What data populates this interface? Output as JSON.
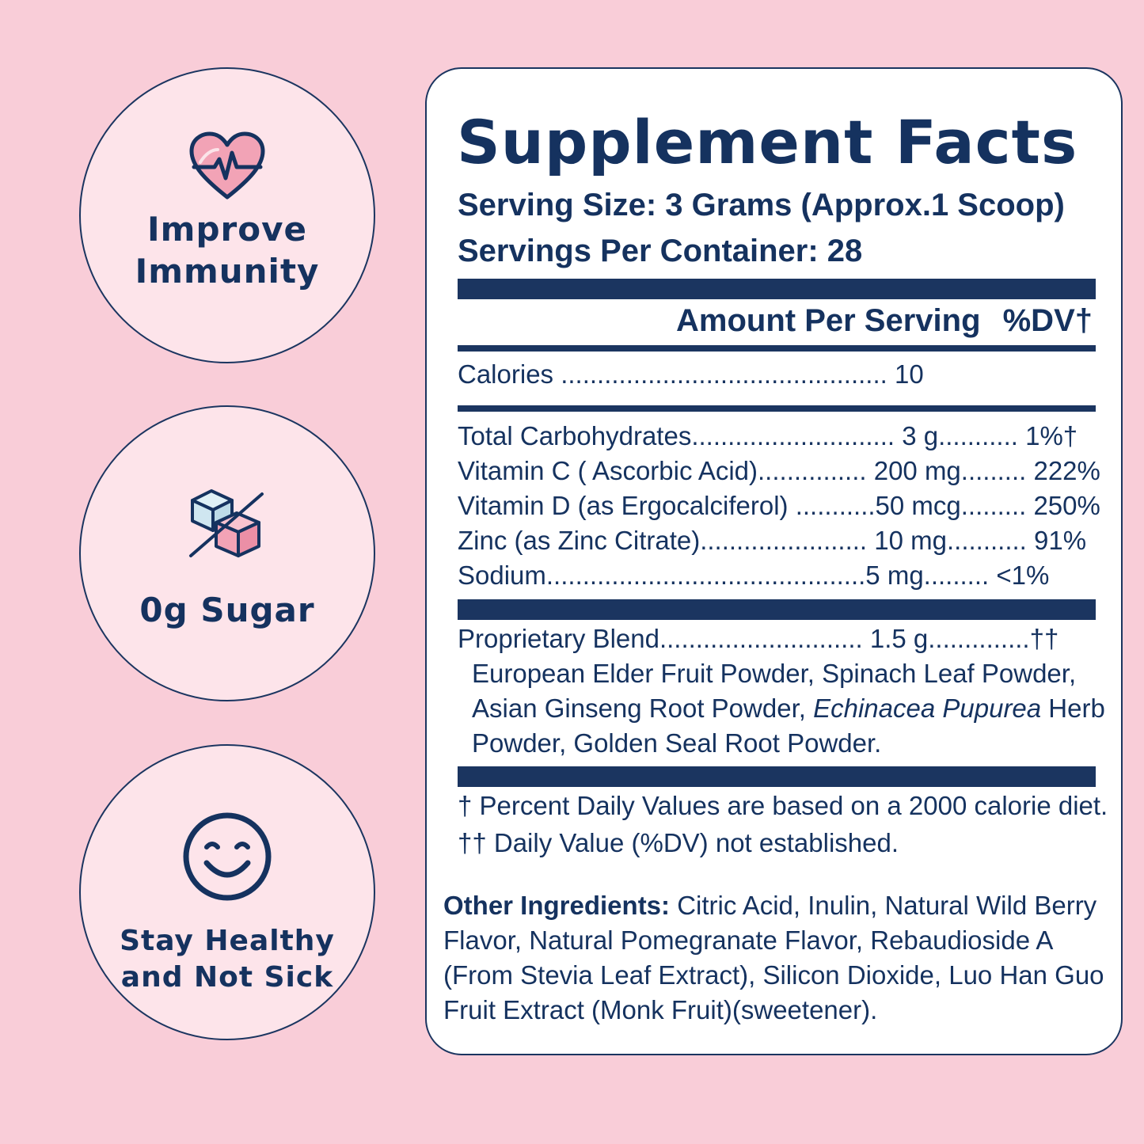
{
  "badges": [
    {
      "label_line1": "Improve",
      "label_line2": "Immunity",
      "icon": "heart-pulse-icon"
    },
    {
      "label_line1": "0g Sugar",
      "label_line2": "",
      "icon": "sugar-cube-crossed-icon"
    },
    {
      "label_line1": "Stay Healthy",
      "label_line2": "and Not Sick",
      "icon": "smiley-face-icon"
    }
  ],
  "facts": {
    "title": "Supplement Facts",
    "serving_size": "Serving Size: 3 Grams (Approx.1 Scoop)",
    "servings_per_container": "Servings Per Container: 28",
    "amount_header": "Amount Per Serving",
    "dv_header": "%DV†",
    "calories_line": "Calories ............................................. 10",
    "nutrients": [
      "Total Carbohydrates............................ 3 g........... 1%†",
      "Vitamin C ( Ascorbic Acid)............... 200 mg......... 222%",
      "Vitamin D (as Ergocalciferol) ...........50 mcg......... 250%",
      "Zinc (as Zinc Citrate)....................... 10 mg........... 91%",
      "Sodium............................................5 mg......... <1%"
    ],
    "blend_line": "Proprietary Blend............................ 1.5 g..............††",
    "blend_desc_1": "European Elder Fruit Powder, Spinach Leaf Powder, Asian Ginseng Root Powder, ",
    "blend_desc_italic": "Echinacea Pupurea",
    "blend_desc_2": " Herb Powder, Golden Seal Root Powder.",
    "footnote_1": "† Percent Daily Values are based on a 2000 calorie diet.",
    "footnote_2": "†† Daily Value (%DV) not established.",
    "other_label": "Other Ingredients:",
    "other_text": " Citric Acid, Inulin, Natural Wild Berry Flavor, Natural Pomegranate Flavor, Rebaudioside A (From Stevia Leaf Extract), Silicon Dioxide,  Luo Han Guo Fruit Extract (Monk Fruit)(sweetener)."
  },
  "colors": {
    "background": "#f9cdd8",
    "badge_fill": "#fde4ea",
    "navy": "#15325f",
    "icon_pink": "#f2a3b6",
    "icon_blue": "#cfe6f0"
  }
}
